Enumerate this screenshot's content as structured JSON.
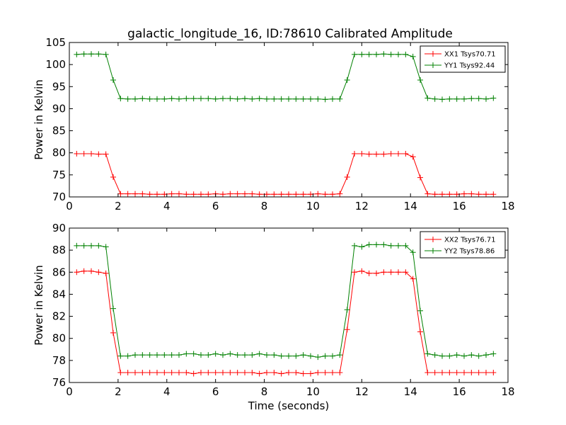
{
  "title": "galactic_longitude_16, ID:78610 Calibrated Amplitude",
  "chart_data": [
    {
      "type": "line",
      "ylabel": "Power in Kelvin",
      "xlim": [
        0,
        18
      ],
      "ylim": [
        70,
        105
      ],
      "xticks": [
        0,
        2,
        4,
        6,
        8,
        10,
        12,
        14,
        16,
        18
      ],
      "yticks": [
        70,
        75,
        80,
        85,
        90,
        95,
        100,
        105
      ],
      "grid": false,
      "legend": "top-right",
      "x": [
        0.3,
        0.6,
        0.9,
        1.2,
        1.5,
        1.8,
        2.1,
        2.4,
        2.7,
        3.0,
        3.3,
        3.6,
        3.9,
        4.2,
        4.5,
        4.8,
        5.1,
        5.4,
        5.7,
        6.0,
        6.3,
        6.6,
        6.9,
        7.2,
        7.5,
        7.8,
        8.1,
        8.4,
        8.7,
        9.0,
        9.3,
        9.6,
        9.9,
        10.2,
        10.5,
        10.8,
        11.1,
        11.4,
        11.7,
        12.0,
        12.3,
        12.6,
        12.9,
        13.2,
        13.5,
        13.8,
        14.1,
        14.4,
        14.7,
        15.0,
        15.3,
        15.6,
        15.9,
        16.2,
        16.5,
        16.8,
        17.1,
        17.4
      ],
      "series": [
        {
          "name": "XX1 Tsys70.71",
          "color": "#ff0000",
          "values": [
            79.8,
            79.8,
            79.8,
            79.7,
            79.7,
            74.5,
            70.7,
            70.7,
            70.7,
            70.7,
            70.6,
            70.6,
            70.6,
            70.7,
            70.7,
            70.6,
            70.6,
            70.6,
            70.6,
            70.7,
            70.6,
            70.7,
            70.7,
            70.7,
            70.7,
            70.6,
            70.6,
            70.6,
            70.6,
            70.6,
            70.6,
            70.6,
            70.6,
            70.7,
            70.6,
            70.6,
            70.7,
            74.5,
            79.8,
            79.8,
            79.7,
            79.7,
            79.7,
            79.8,
            79.8,
            79.8,
            79.1,
            74.4,
            70.7,
            70.6,
            70.6,
            70.6,
            70.6,
            70.7,
            70.7,
            70.6,
            70.6,
            70.6
          ]
        },
        {
          "name": "YY1 Tsys92.44",
          "color": "#008000",
          "values": [
            102.3,
            102.4,
            102.4,
            102.4,
            102.3,
            96.5,
            92.3,
            92.2,
            92.2,
            92.3,
            92.2,
            92.2,
            92.2,
            92.3,
            92.2,
            92.3,
            92.3,
            92.3,
            92.3,
            92.2,
            92.3,
            92.3,
            92.2,
            92.3,
            92.2,
            92.3,
            92.2,
            92.2,
            92.2,
            92.2,
            92.2,
            92.2,
            92.2,
            92.2,
            92.1,
            92.2,
            92.2,
            96.5,
            102.3,
            102.3,
            102.3,
            102.3,
            102.4,
            102.3,
            102.3,
            102.3,
            101.8,
            96.5,
            92.4,
            92.2,
            92.1,
            92.2,
            92.2,
            92.2,
            92.3,
            92.3,
            92.2,
            92.4
          ]
        }
      ]
    },
    {
      "type": "line",
      "xlabel": "Time (seconds)",
      "ylabel": "Power in Kelvin",
      "xlim": [
        0,
        18
      ],
      "ylim": [
        76,
        90
      ],
      "xticks": [
        0,
        2,
        4,
        6,
        8,
        10,
        12,
        14,
        16,
        18
      ],
      "yticks": [
        76,
        78,
        80,
        82,
        84,
        86,
        88,
        90
      ],
      "grid": false,
      "legend": "top-right",
      "x": [
        0.3,
        0.6,
        0.9,
        1.2,
        1.5,
        1.8,
        2.1,
        2.4,
        2.7,
        3.0,
        3.3,
        3.6,
        3.9,
        4.2,
        4.5,
        4.8,
        5.1,
        5.4,
        5.7,
        6.0,
        6.3,
        6.6,
        6.9,
        7.2,
        7.5,
        7.8,
        8.1,
        8.4,
        8.7,
        9.0,
        9.3,
        9.6,
        9.9,
        10.2,
        10.5,
        10.8,
        11.1,
        11.4,
        11.7,
        12.0,
        12.3,
        12.6,
        12.9,
        13.2,
        13.5,
        13.8,
        14.1,
        14.4,
        14.7,
        15.0,
        15.3,
        15.6,
        15.9,
        16.2,
        16.5,
        16.8,
        17.1,
        17.4
      ],
      "series": [
        {
          "name": "XX2 Tsys76.71",
          "color": "#ff0000",
          "values": [
            86.0,
            86.1,
            86.1,
            86.0,
            85.9,
            80.5,
            76.9,
            76.9,
            76.9,
            76.9,
            76.9,
            76.9,
            76.9,
            76.9,
            76.9,
            76.9,
            76.8,
            76.9,
            76.9,
            76.9,
            76.9,
            76.9,
            76.9,
            76.9,
            76.9,
            76.8,
            76.9,
            76.9,
            76.8,
            76.9,
            76.9,
            76.8,
            76.8,
            76.9,
            76.9,
            76.9,
            76.9,
            80.8,
            86.0,
            86.1,
            85.9,
            85.9,
            86.0,
            86.0,
            86.0,
            86.0,
            85.4,
            80.6,
            76.9,
            76.9,
            76.9,
            76.9,
            76.9,
            76.9,
            76.9,
            76.9,
            76.9,
            76.9
          ]
        },
        {
          "name": "YY2 Tsys78.86",
          "color": "#008000",
          "values": [
            88.4,
            88.4,
            88.4,
            88.4,
            88.3,
            82.7,
            78.4,
            78.4,
            78.5,
            78.5,
            78.5,
            78.5,
            78.5,
            78.5,
            78.5,
            78.6,
            78.6,
            78.5,
            78.5,
            78.6,
            78.5,
            78.6,
            78.5,
            78.5,
            78.5,
            78.6,
            78.5,
            78.5,
            78.4,
            78.4,
            78.4,
            78.5,
            78.4,
            78.3,
            78.4,
            78.4,
            78.5,
            82.6,
            88.4,
            88.3,
            88.5,
            88.5,
            88.5,
            88.4,
            88.4,
            88.4,
            87.8,
            82.5,
            78.6,
            78.5,
            78.4,
            78.4,
            78.5,
            78.4,
            78.5,
            78.4,
            78.5,
            78.6
          ]
        }
      ]
    }
  ]
}
